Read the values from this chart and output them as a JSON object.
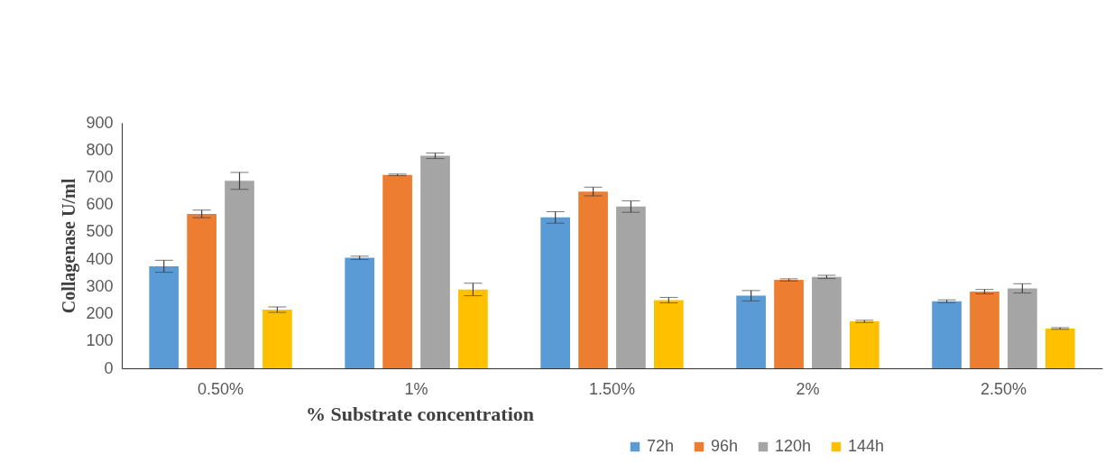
{
  "chart_data": {
    "type": "bar",
    "xlabel": "% Substrate concentration",
    "ylabel": "Collagenase U/ml",
    "categories": [
      "0.50%",
      "1%",
      "1.50%",
      "2%",
      "2.50%"
    ],
    "ylim": [
      0,
      900
    ],
    "yticks": [
      0,
      100,
      200,
      300,
      400,
      500,
      600,
      700,
      800,
      900
    ],
    "legend": "bottom right",
    "series": [
      {
        "name": "72h",
        "color": "#5b9bd5",
        "values": [
          374,
          405,
          553,
          266,
          246
        ],
        "errors": [
          22,
          6,
          21,
          19,
          5
        ]
      },
      {
        "name": "96h",
        "color": "#ed7d31",
        "values": [
          566,
          709,
          648,
          324,
          281
        ],
        "errors": [
          14,
          3,
          16,
          4,
          8
        ]
      },
      {
        "name": "120h",
        "color": "#a5a5a5",
        "values": [
          687,
          779,
          593,
          335,
          293
        ],
        "errors": [
          31,
          10,
          21,
          6,
          17
        ]
      },
      {
        "name": "144h",
        "color": "#ffc000",
        "values": [
          215,
          289,
          250,
          172,
          146
        ],
        "errors": [
          10,
          23,
          10,
          4,
          3
        ]
      }
    ]
  }
}
